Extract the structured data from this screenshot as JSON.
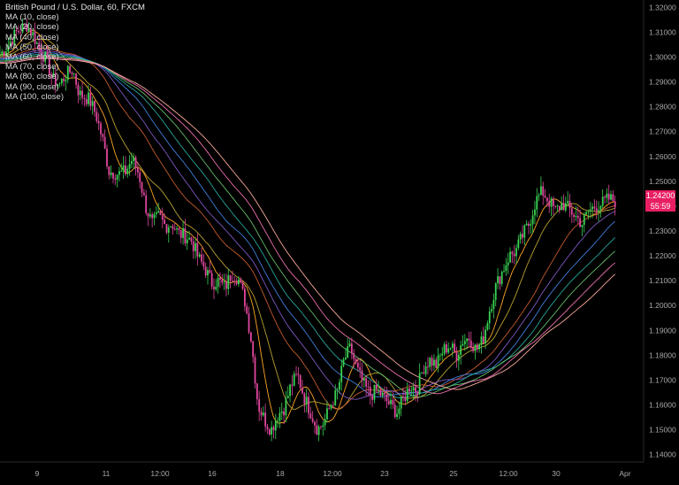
{
  "chart_data": {
    "type": "line",
    "title": "British Pound / U.S. Dollar, 60, FXCM",
    "colors": {
      "background": "#000000",
      "up_candle": "#39d353",
      "down_candle": "#e0479e",
      "axis_text": "#a8a8a8",
      "price_tag": "#e91e63"
    },
    "moving_averages": [
      {
        "name": "MA (10, close)",
        "color": "#ffa726"
      },
      {
        "name": "MA (20, close)",
        "color": "#b8a030"
      },
      {
        "name": "MA (40, close)",
        "color": "#c55a2d"
      },
      {
        "name": "MA (50, close)",
        "color": "#7e57c2"
      },
      {
        "name": "MA (60, close)",
        "color": "#3f7fdb"
      },
      {
        "name": "MA (70, close)",
        "color": "#26a69a"
      },
      {
        "name": "MA (80, close)",
        "color": "#66bb6a"
      },
      {
        "name": "MA (90, close)",
        "color": "#ec6fae"
      },
      {
        "name": "MA (100, close)",
        "color": "#f8a99a"
      }
    ],
    "y_axis": {
      "ticks": [
        "1.32000",
        "1.31000",
        "1.30000",
        "1.29000",
        "1.28000",
        "1.27000",
        "1.26000",
        "1.25000",
        "1.24000",
        "1.23000",
        "1.22000",
        "1.21000",
        "1.20000",
        "1.19000",
        "1.18000",
        "1.17000",
        "1.16000",
        "1.15000",
        "1.14000"
      ],
      "ylim": [
        1.137,
        1.323
      ]
    },
    "x_axis": {
      "ticks": [
        "9",
        "11",
        "12:00",
        "16",
        "18",
        "12:00",
        "23",
        "25",
        "12:00",
        "30",
        "Apr"
      ]
    },
    "last_price_label": "1.24200",
    "countdown_label": "55:59",
    "price_path": [
      [
        0,
        1.301
      ],
      [
        0.02,
        1.304
      ],
      [
        0.05,
        1.31
      ],
      [
        0.08,
        1.313
      ],
      [
        0.1,
        1.309
      ],
      [
        0.12,
        1.303
      ],
      [
        0.14,
        1.299
      ],
      [
        0.16,
        1.291
      ],
      [
        0.18,
        1.289
      ],
      [
        0.2,
        1.293
      ],
      [
        0.22,
        1.295
      ],
      [
        0.24,
        1.285
      ],
      [
        0.27,
        1.283
      ],
      [
        0.29,
        1.277
      ],
      [
        0.31,
        1.267
      ],
      [
        0.33,
        1.254
      ],
      [
        0.36,
        1.253
      ],
      [
        0.38,
        1.254
      ],
      [
        0.4,
        1.259
      ],
      [
        0.42,
        1.253
      ],
      [
        0.44,
        1.24
      ],
      [
        0.46,
        1.233
      ],
      [
        0.48,
        1.236
      ],
      [
        0.5,
        1.232
      ],
      [
        0.52,
        1.233
      ],
      [
        0.54,
        1.229
      ],
      [
        0.56,
        1.228
      ],
      [
        0.58,
        1.226
      ],
      [
        0.6,
        1.219
      ],
      [
        0.62,
        1.215
      ],
      [
        0.64,
        1.209
      ],
      [
        0.66,
        1.21
      ],
      [
        0.68,
        1.207
      ],
      [
        0.7,
        1.213
      ],
      [
        0.72,
        1.211
      ],
      [
        0.74,
        1.202
      ],
      [
        0.76,
        1.186
      ],
      [
        0.78,
        1.16
      ],
      [
        0.8,
        1.154
      ],
      [
        0.82,
        1.15
      ],
      [
        0.84,
        1.156
      ],
      [
        0.86,
        1.159
      ],
      [
        0.88,
        1.168
      ],
      [
        0.9,
        1.172
      ],
      [
        0.92,
        1.163
      ],
      [
        0.94,
        1.157
      ],
      [
        0.96,
        1.15
      ],
      [
        0.98,
        1.153
      ],
      [
        1.0,
        1.16
      ],
      [
        1.02,
        1.165
      ],
      [
        1.04,
        1.178
      ],
      [
        1.06,
        1.183
      ],
      [
        1.08,
        1.174
      ],
      [
        1.1,
        1.168
      ],
      [
        1.12,
        1.164
      ],
      [
        1.14,
        1.166
      ],
      [
        1.16,
        1.163
      ],
      [
        1.18,
        1.16
      ],
      [
        1.2,
        1.157
      ],
      [
        1.22,
        1.162
      ],
      [
        1.24,
        1.168
      ],
      [
        1.26,
        1.166
      ],
      [
        1.28,
        1.175
      ],
      [
        1.3,
        1.178
      ],
      [
        1.32,
        1.176
      ],
      [
        1.34,
        1.182
      ],
      [
        1.36,
        1.184
      ],
      [
        1.38,
        1.18
      ],
      [
        1.4,
        1.186
      ],
      [
        1.42,
        1.187
      ],
      [
        1.44,
        1.182
      ],
      [
        1.46,
        1.186
      ],
      [
        1.48,
        1.198
      ],
      [
        1.5,
        1.208
      ],
      [
        1.52,
        1.214
      ],
      [
        1.54,
        1.22
      ],
      [
        1.56,
        1.222
      ],
      [
        1.58,
        1.228
      ],
      [
        1.6,
        1.233
      ],
      [
        1.62,
        1.242
      ],
      [
        1.64,
        1.246
      ],
      [
        1.66,
        1.242
      ],
      [
        1.68,
        1.238
      ],
      [
        1.7,
        1.241
      ],
      [
        1.72,
        1.239
      ],
      [
        1.74,
        1.236
      ],
      [
        1.76,
        1.233
      ],
      [
        1.78,
        1.238
      ],
      [
        1.8,
        1.24
      ],
      [
        1.82,
        1.241
      ],
      [
        1.84,
        1.243
      ],
      [
        1.86,
        1.242
      ]
    ]
  }
}
